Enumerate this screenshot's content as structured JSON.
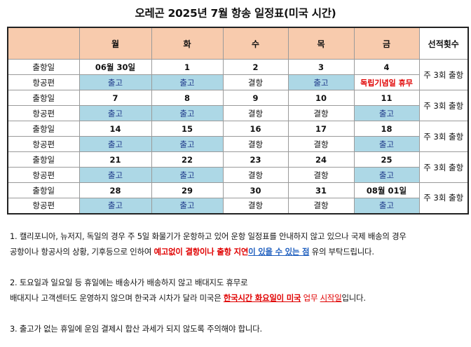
{
  "title": "오레곤 2025년 7월 항송 일정표(미국 시간)",
  "table": {
    "headers": [
      "",
      "월",
      "화",
      "수",
      "목",
      "금",
      "선적횟수"
    ],
    "row_label_dates": "출항일",
    "row_label_flight": "항공편",
    "weeks": [
      {
        "dates": [
          "06월 30일",
          "1",
          "2",
          "3",
          "4"
        ],
        "flights": [
          "출고",
          "출고",
          "결항",
          "출고",
          "독립기념일 휴무"
        ],
        "freq": "주 3회 출항"
      },
      {
        "dates": [
          "7",
          "8",
          "9",
          "10",
          "11"
        ],
        "flights": [
          "출고",
          "출고",
          "결항",
          "결항",
          "출고"
        ],
        "freq": "주 3회 출항"
      },
      {
        "dates": [
          "14",
          "15",
          "16",
          "17",
          "18"
        ],
        "flights": [
          "출고",
          "출고",
          "결항",
          "결항",
          "출고"
        ],
        "freq": "주 3회 출항"
      },
      {
        "dates": [
          "21",
          "22",
          "23",
          "24",
          "25"
        ],
        "flights": [
          "출고",
          "출고",
          "결항",
          "결항",
          "출고"
        ],
        "freq": "주 3회 출항"
      },
      {
        "dates": [
          "28",
          "29",
          "30",
          "31",
          "08월 01일"
        ],
        "flights": [
          "출고",
          "출고",
          "결항",
          "결항",
          "출고"
        ],
        "freq": "주 3회 출항"
      }
    ]
  },
  "notes": {
    "n1_line1": "1. 캘리포니아, 뉴저지, 독일의 경우 주 5일 화물기가 운항하고 있어 운항 일정표를 안내하지 않고 있으나 국제 배송의 경우",
    "n1_line2_a": "공항이나 항공사의 상황, 기후등으로 인하여 ",
    "n1_line2_red": "예고없이 결항이나 출항 지연",
    "n1_line2_b": "이 있을 수 있는 점",
    "n1_line2_c": " 유의 부탁드립니다.",
    "n2_line1": "2. 토요일과 일요일 등 휴일에는 배송사가 배송하지 않고 배대지도 휴무로",
    "n2_line2_a": "배대지나 고객센터도 운영하지 않으며 한국과 시차가 달라 미국은 ",
    "n2_line2_red": "한국시간 화요일이 미국",
    "n2_line2_b": " 업무 ",
    "n2_line2_c": "시작일",
    "n2_line2_d": "입니다.",
    "n3": "3. 출고가 없는 휴일에 운임 결제시 합산 과세가 되지 않도록 주의해야 합니다."
  }
}
